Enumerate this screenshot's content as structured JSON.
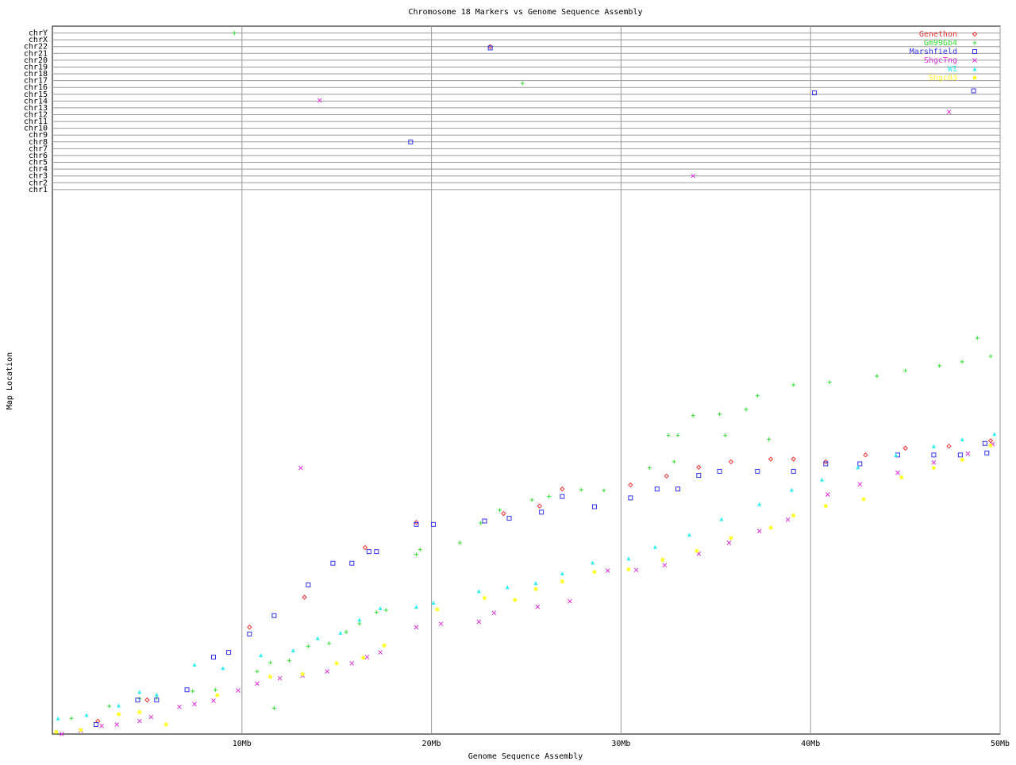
{
  "chart_data": {
    "type": "scatter",
    "title": "Chromosome 18 Markers vs Genome Sequence Assembly",
    "x_label": "Genome Sequence Assembly",
    "y_label": "Map Location",
    "xlim": [
      0,
      50
    ],
    "xticks": [
      {
        "value": 10,
        "label": "10Mb"
      },
      {
        "value": 20,
        "label": "20Mb"
      },
      {
        "value": 30,
        "label": "30Mb"
      },
      {
        "value": 40,
        "label": "40Mb"
      },
      {
        "value": 50,
        "label": "50Mb"
      }
    ],
    "ylim": [
      0,
      104
    ],
    "yticks": [
      {
        "value": 80,
        "label": "chr1"
      },
      {
        "value": 81,
        "label": "chr2"
      },
      {
        "value": 82,
        "label": "chr3"
      },
      {
        "value": 83,
        "label": "chr4"
      },
      {
        "value": 84,
        "label": "chr5"
      },
      {
        "value": 85,
        "label": "chr6"
      },
      {
        "value": 86,
        "label": "chr7"
      },
      {
        "value": 87,
        "label": "chr8"
      },
      {
        "value": 88,
        "label": "chr9"
      },
      {
        "value": 89,
        "label": "chr10"
      },
      {
        "value": 90,
        "label": "chr11"
      },
      {
        "value": 91,
        "label": "chr12"
      },
      {
        "value": 92,
        "label": "chr13"
      },
      {
        "value": 93,
        "label": "chr14"
      },
      {
        "value": 94,
        "label": "chr15"
      },
      {
        "value": 95,
        "label": "chr16"
      },
      {
        "value": 96,
        "label": "chr17"
      },
      {
        "value": 97,
        "label": "chr18"
      },
      {
        "value": 98,
        "label": "chr19"
      },
      {
        "value": 99,
        "label": "chr20"
      },
      {
        "value": 100,
        "label": "chr21"
      },
      {
        "value": 101,
        "label": "chr22"
      },
      {
        "value": 102,
        "label": "chrX"
      },
      {
        "value": 103,
        "label": "chrY"
      }
    ],
    "grid": true,
    "legend": "top-right",
    "series": [
      {
        "name": "Genethon",
        "color": "#ee3333",
        "marker": "diamond",
        "x": [
          13.3,
          10.4,
          16.5,
          19.2,
          23.8,
          25.7,
          26.9,
          30.5,
          32.4,
          34.1,
          35.8,
          37.9,
          39.1,
          40.8,
          42.9,
          45,
          47.3,
          49.5,
          5,
          2.4,
          23.1
        ],
        "values": [
          20.1,
          15.7,
          27.4,
          31.1,
          32.4,
          33.5,
          36.0,
          36.6,
          37.9,
          39.2,
          40.0,
          40.4,
          40.4,
          40.0,
          41.0,
          42.0,
          42.3,
          43.1,
          5.0,
          1.9,
          101
        ]
      },
      {
        "name": "Gm99Gb4",
        "color": "#33dd33",
        "marker": "plus",
        "x": [
          1.0,
          3,
          4.6,
          5.5,
          7.4,
          8.6,
          10.8,
          11.5,
          12.5,
          13.5,
          14.6,
          15.5,
          16.2,
          17.1,
          17.6,
          19.2,
          19.4,
          21.5,
          22.6,
          23.6,
          25.3,
          26.2,
          27.9,
          29.1,
          31.5,
          32.8,
          33.0,
          33.8,
          35.2,
          36.6,
          37.2,
          39.1,
          41,
          43.5,
          45,
          46.8,
          48,
          48.8,
          49.5,
          32.5,
          35.5,
          37.8,
          11.7,
          9.6,
          24.8
        ],
        "values": [
          2.3,
          4.1,
          5.2,
          5.3,
          6.3,
          6.5,
          9.2,
          10.5,
          10.8,
          12.9,
          13.3,
          15.0,
          16.2,
          17.9,
          18.2,
          26.4,
          27.1,
          28.1,
          31.0,
          32.9,
          34.4,
          34.9,
          35.9,
          35.8,
          39.1,
          40.0,
          43.9,
          46.8,
          47.0,
          47.7,
          49.7,
          51.3,
          51.7,
          52.6,
          53.4,
          54.1,
          54.7,
          58.2,
          55.5,
          43.9,
          43.9,
          43.3,
          3.8,
          103,
          95.6
        ]
      },
      {
        "name": "Marshfield",
        "color": "#3333ee",
        "marker": "square",
        "x": [
          2.3,
          4.5,
          5.5,
          7.1,
          8.5,
          9.3,
          10.4,
          11.7,
          13.5,
          14.8,
          15.8,
          16.7,
          17.1,
          19.2,
          20.1,
          22.8,
          24.1,
          25.8,
          26.9,
          28.6,
          30.5,
          31.9,
          33.0,
          34.1,
          35.2,
          37.2,
          39.1,
          40.8,
          42.6,
          44.6,
          46.5,
          47.9,
          49.2,
          49.3,
          18.9,
          40.2,
          48.6,
          23.1
        ],
        "values": [
          1.4,
          5.0,
          5.0,
          6.5,
          11.3,
          12.0,
          14.7,
          17.4,
          21.9,
          25.1,
          25.1,
          26.8,
          26.8,
          30.8,
          30.8,
          31.3,
          31.7,
          32.6,
          34.9,
          33.4,
          34.7,
          36.0,
          36.0,
          38.0,
          38.6,
          38.6,
          38.6,
          39.7,
          39.7,
          41.0,
          41.0,
          41.0,
          42.7,
          41.3,
          87.0,
          94.2,
          94.5,
          100.8
        ]
      },
      {
        "name": "ShgcTng",
        "color": "#dd33dd",
        "marker": "cross",
        "x": [
          0.5,
          1.5,
          2.6,
          3.4,
          4.6,
          5.2,
          6.7,
          7.5,
          8.5,
          9.8,
          10.8,
          12,
          13.2,
          14.5,
          15.8,
          16.6,
          17.3,
          19.2,
          20.5,
          22.5,
          23.3,
          25.6,
          27.3,
          29.3,
          30.8,
          32.3,
          34.1,
          35.7,
          37.3,
          38.8,
          40.9,
          42.6,
          44.6,
          46.5,
          48.3,
          49.6,
          13.1,
          14.1,
          33.8,
          47.3
        ],
        "values": [
          0,
          0.5,
          1.2,
          1.4,
          1.9,
          2.5,
          4.0,
          4.4,
          4.9,
          6.4,
          7.4,
          8.2,
          8.6,
          9.2,
          10.4,
          11.3,
          12.0,
          15.7,
          16.2,
          16.5,
          17.8,
          18.7,
          19.5,
          24.0,
          24.1,
          24.8,
          26.5,
          28.1,
          29.8,
          31.5,
          35.2,
          36.7,
          38.4,
          39.9,
          41.2,
          42.6,
          39.1,
          93.1,
          82.0,
          91.4
        ]
      },
      {
        "name": "WI",
        "color": "#33eeee",
        "marker": "triangle",
        "x": [
          0.3,
          1.8,
          3.5,
          4.6,
          5.5,
          7.5,
          9,
          11,
          12.7,
          14,
          15.2,
          16.2,
          17.3,
          19.2,
          20.1,
          22.5,
          24,
          25.5,
          26.9,
          28.5,
          30.4,
          31.8,
          33.6,
          35.3,
          37.3,
          39,
          40.6,
          42.5,
          44.5,
          46.5,
          48,
          49.7
        ],
        "values": [
          2.3,
          2.8,
          4.2,
          6.2,
          5.8,
          10.2,
          9.7,
          11.6,
          12.3,
          14.1,
          14.9,
          16.8,
          18.5,
          18.7,
          19.3,
          21.0,
          21.6,
          22.2,
          23.6,
          25.2,
          25.8,
          27.5,
          29.3,
          31.6,
          33.8,
          35.9,
          37.4,
          39.2,
          41.0,
          42.3,
          43.3,
          44.1
        ]
      },
      {
        "name": "Shgc03",
        "color": "#ffff33",
        "marker": "dot",
        "x": [
          0.2,
          1.5,
          3.5,
          4.6,
          6,
          8.7,
          11.5,
          13.2,
          15,
          16.4,
          17.5,
          20.3,
          22.8,
          24.4,
          25.5,
          26.9,
          28.6,
          30.4,
          32.2,
          34,
          35.8,
          37.9,
          39.1,
          40.8,
          42.8,
          44.8,
          46.5,
          48,
          49.5
        ],
        "values": [
          0.3,
          0.6,
          2.9,
          3.2,
          1.4,
          5.7,
          8.4,
          8.8,
          10.4,
          11.2,
          13.0,
          18.3,
          20.0,
          19.7,
          21.3,
          22.4,
          23.8,
          24.2,
          25.6,
          26.9,
          28.8,
          30.3,
          32.1,
          33.5,
          34.5,
          37.7,
          39.1,
          40.3,
          42.4
        ]
      }
    ]
  }
}
